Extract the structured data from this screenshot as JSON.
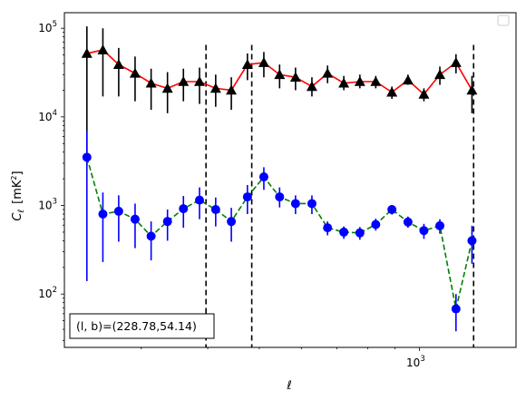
{
  "chart_data": {
    "type": "line",
    "title": "",
    "xlabel": "ℓ",
    "ylabel_main": "C",
    "ylabel_sub": "ℓ",
    "ylabel_unit_open": "[mK",
    "ylabel_unit_sup": "2",
    "ylabel_unit_close": "]",
    "xscale": "log",
    "yscale": "log",
    "xlim": [
      215,
      1520
    ],
    "ylim": [
      25,
      150000
    ],
    "grid": false,
    "legend_position": "top-right",
    "legend_entries": [],
    "x_tick_labels": [
      {
        "value": 1000,
        "base": "10",
        "exp": "3"
      }
    ],
    "y_tick_labels": [
      {
        "value": 100,
        "base": "10",
        "exp": "2"
      },
      {
        "value": 1000,
        "base": "10",
        "exp": "3"
      },
      {
        "value": 10000,
        "base": "10",
        "exp": "4"
      },
      {
        "value": 100000,
        "base": "10",
        "exp": "5"
      }
    ],
    "vertical_lines": [
      {
        "x": 397
      },
      {
        "x": 484
      },
      {
        "x": 1265
      }
    ],
    "annotation": "(l, b)=(228.78,54.14)",
    "series": [
      {
        "line_color": "#ff0000",
        "line_style": "solid",
        "marker": "triangle",
        "marker_color": "#000000",
        "errorbar_color": "#000000",
        "points": [
          {
            "x": 237,
            "y": 52000,
            "lo": 2800,
            "hi": 105000
          },
          {
            "x": 254,
            "y": 57000,
            "lo": 17000,
            "hi": 100000
          },
          {
            "x": 272,
            "y": 39000,
            "lo": 17000,
            "hi": 60000
          },
          {
            "x": 292,
            "y": 31000,
            "lo": 15000,
            "hi": 48000
          },
          {
            "x": 313,
            "y": 24000,
            "lo": 12000,
            "hi": 35000
          },
          {
            "x": 336,
            "y": 21000,
            "lo": 11000,
            "hi": 32000
          },
          {
            "x": 360,
            "y": 25000,
            "lo": 15000,
            "hi": 35000
          },
          {
            "x": 386,
            "y": 25000,
            "lo": 14000,
            "hi": 36000
          },
          {
            "x": 414,
            "y": 21000,
            "lo": 13000,
            "hi": 30000
          },
          {
            "x": 443,
            "y": 20000,
            "lo": 12000,
            "hi": 28000
          },
          {
            "x": 475,
            "y": 39000,
            "lo": 26000,
            "hi": 52000
          },
          {
            "x": 510,
            "y": 41000,
            "lo": 28000,
            "hi": 54000
          },
          {
            "x": 546,
            "y": 30000,
            "lo": 21000,
            "hi": 39000
          },
          {
            "x": 585,
            "y": 28000,
            "lo": 20000,
            "hi": 36000
          },
          {
            "x": 628,
            "y": 22000,
            "lo": 17000,
            "hi": 28000
          },
          {
            "x": 672,
            "y": 31000,
            "lo": 24000,
            "hi": 38000
          },
          {
            "x": 721,
            "y": 24000,
            "lo": 20000,
            "hi": 29000
          },
          {
            "x": 773,
            "y": 25000,
            "lo": 21000,
            "hi": 30000
          },
          {
            "x": 828,
            "y": 25000,
            "lo": 21000,
            "hi": 29000
          },
          {
            "x": 888,
            "y": 19000,
            "lo": 16000,
            "hi": 22000
          },
          {
            "x": 952,
            "y": 26000,
            "lo": 23000,
            "hi": 30000
          },
          {
            "x": 1020,
            "y": 18000,
            "lo": 15000,
            "hi": 21000
          },
          {
            "x": 1093,
            "y": 30000,
            "lo": 23000,
            "hi": 37000
          },
          {
            "x": 1172,
            "y": 41000,
            "lo": 31000,
            "hi": 51000
          },
          {
            "x": 1256,
            "y": 20000,
            "lo": 11000,
            "hi": 29000
          }
        ]
      },
      {
        "line_color": "#008000",
        "line_style": "dashed",
        "marker": "circle",
        "marker_color": "#0000ff",
        "errorbar_color": "#0000ff",
        "points": [
          {
            "x": 237,
            "y": 3500,
            "lo": 140,
            "hi": 7000
          },
          {
            "x": 254,
            "y": 800,
            "lo": 230,
            "hi": 1400
          },
          {
            "x": 272,
            "y": 860,
            "lo": 390,
            "hi": 1300
          },
          {
            "x": 292,
            "y": 700,
            "lo": 330,
            "hi": 1050
          },
          {
            "x": 313,
            "y": 450,
            "lo": 240,
            "hi": 660
          },
          {
            "x": 336,
            "y": 660,
            "lo": 400,
            "hi": 900
          },
          {
            "x": 360,
            "y": 920,
            "lo": 560,
            "hi": 1280
          },
          {
            "x": 386,
            "y": 1150,
            "lo": 700,
            "hi": 1600
          },
          {
            "x": 414,
            "y": 900,
            "lo": 580,
            "hi": 1230
          },
          {
            "x": 443,
            "y": 660,
            "lo": 390,
            "hi": 940
          },
          {
            "x": 475,
            "y": 1250,
            "lo": 800,
            "hi": 1700
          },
          {
            "x": 510,
            "y": 2100,
            "lo": 1500,
            "hi": 2700
          },
          {
            "x": 546,
            "y": 1250,
            "lo": 950,
            "hi": 1600
          },
          {
            "x": 585,
            "y": 1050,
            "lo": 800,
            "hi": 1300
          },
          {
            "x": 628,
            "y": 1050,
            "lo": 800,
            "hi": 1300
          },
          {
            "x": 672,
            "y": 560,
            "lo": 460,
            "hi": 660
          },
          {
            "x": 721,
            "y": 500,
            "lo": 420,
            "hi": 580
          },
          {
            "x": 773,
            "y": 490,
            "lo": 410,
            "hi": 570
          },
          {
            "x": 828,
            "y": 610,
            "lo": 520,
            "hi": 710
          },
          {
            "x": 888,
            "y": 900,
            "lo": 790,
            "hi": 1010
          },
          {
            "x": 952,
            "y": 650,
            "lo": 560,
            "hi": 750
          },
          {
            "x": 1020,
            "y": 520,
            "lo": 420,
            "hi": 620
          },
          {
            "x": 1093,
            "y": 590,
            "lo": 480,
            "hi": 700
          },
          {
            "x": 1172,
            "y": 68,
            "lo": 38,
            "hi": 100
          },
          {
            "x": 1256,
            "y": 400,
            "lo": 220,
            "hi": 590
          }
        ]
      }
    ]
  }
}
